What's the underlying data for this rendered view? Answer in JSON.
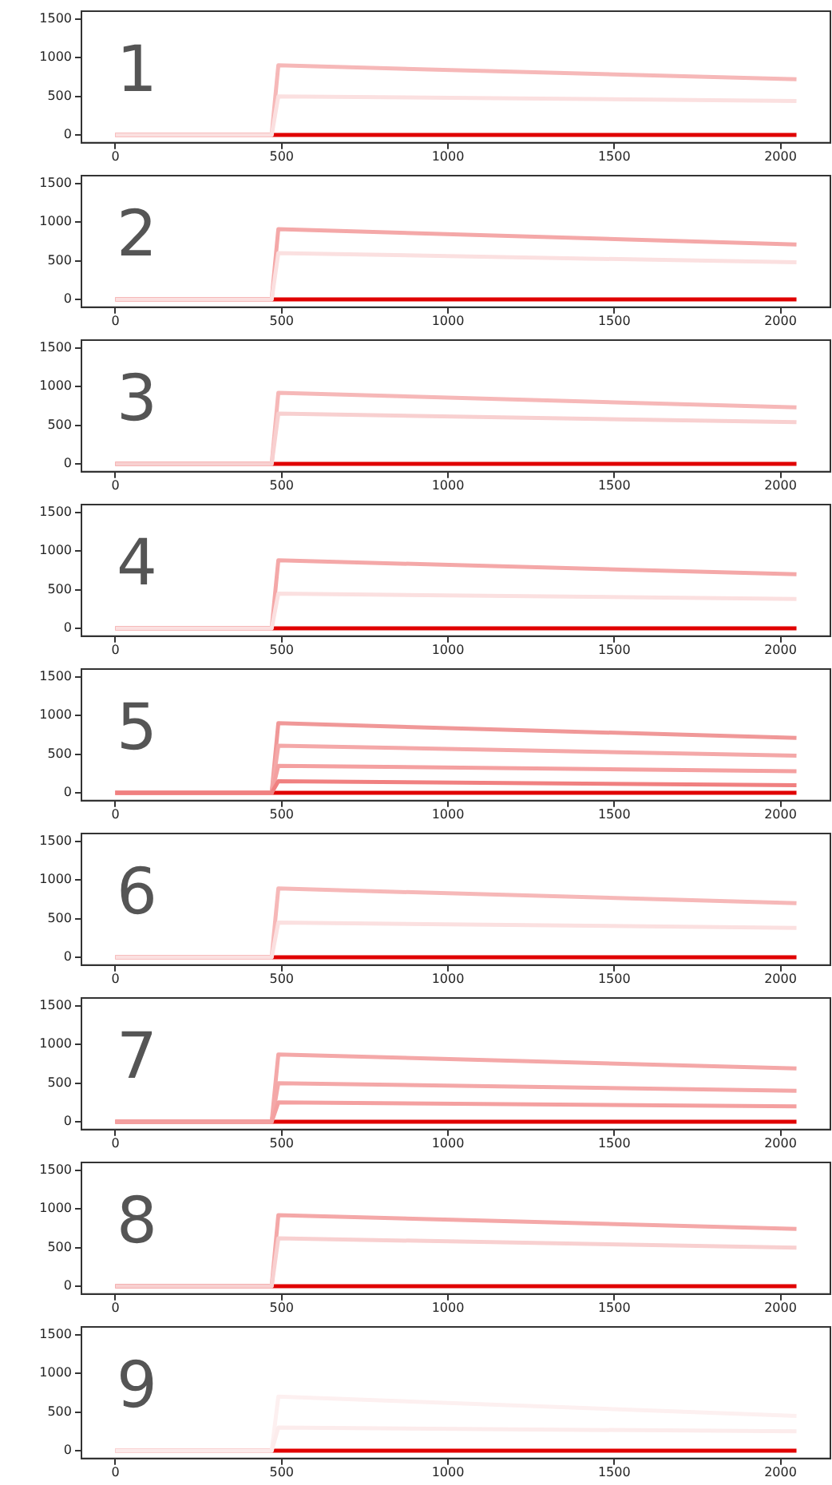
{
  "chart_data": [
    {
      "type": "line",
      "annotations": [
        "1"
      ],
      "xlim": [
        -102,
        2150
      ],
      "ylim": [
        -100,
        1600
      ],
      "xticks": [
        0,
        500,
        1000,
        1500,
        2000
      ],
      "yticks": [
        0,
        500,
        1000,
        1500
      ],
      "grid": false,
      "legend": false,
      "marker": "none",
      "line_style": "solid",
      "series": [
        {
          "color": "#fbe0e0",
          "x": [
            0,
            470,
            490,
            2048
          ],
          "values": [
            0,
            0,
            500,
            440
          ]
        },
        {
          "color": "#f6b8b8",
          "x": [
            0,
            470,
            490,
            2048
          ],
          "values": [
            0,
            0,
            900,
            720
          ]
        },
        {
          "color": "#e00000",
          "x": [
            0,
            470,
            490,
            2048
          ],
          "values": [
            0,
            0,
            0,
            0
          ]
        }
      ]
    },
    {
      "type": "line",
      "annotations": [
        "2"
      ],
      "xlim": [
        -102,
        2150
      ],
      "ylim": [
        -100,
        1600
      ],
      "xticks": [
        0,
        500,
        1000,
        1500,
        2000
      ],
      "yticks": [
        0,
        500,
        1000,
        1500
      ],
      "grid": false,
      "legend": false,
      "marker": "none",
      "line_style": "solid",
      "series": [
        {
          "color": "#fbe0e0",
          "x": [
            0,
            470,
            490,
            2048
          ],
          "values": [
            0,
            0,
            600,
            480
          ]
        },
        {
          "color": "#f4a8a8",
          "x": [
            0,
            470,
            490,
            2048
          ],
          "values": [
            0,
            0,
            910,
            710
          ]
        },
        {
          "color": "#e00000",
          "x": [
            0,
            470,
            490,
            2048
          ],
          "values": [
            0,
            0,
            0,
            0
          ]
        }
      ]
    },
    {
      "type": "line",
      "annotations": [
        "3"
      ],
      "xlim": [
        -102,
        2150
      ],
      "ylim": [
        -100,
        1600
      ],
      "xticks": [
        0,
        500,
        1000,
        1500,
        2000
      ],
      "yticks": [
        0,
        500,
        1000,
        1500
      ],
      "grid": false,
      "legend": false,
      "marker": "none",
      "line_style": "solid",
      "series": [
        {
          "color": "#f8d0d0",
          "x": [
            0,
            470,
            490,
            2048
          ],
          "values": [
            0,
            0,
            650,
            540
          ]
        },
        {
          "color": "#f6b8b8",
          "x": [
            0,
            470,
            490,
            2048
          ],
          "values": [
            0,
            0,
            920,
            730
          ]
        },
        {
          "color": "#e00000",
          "x": [
            0,
            470,
            490,
            2048
          ],
          "values": [
            0,
            0,
            0,
            0
          ]
        }
      ]
    },
    {
      "type": "line",
      "annotations": [
        "4"
      ],
      "xlim": [
        -102,
        2150
      ],
      "ylim": [
        -100,
        1600
      ],
      "xticks": [
        0,
        500,
        1000,
        1500,
        2000
      ],
      "yticks": [
        0,
        500,
        1000,
        1500
      ],
      "grid": false,
      "legend": false,
      "marker": "none",
      "line_style": "solid",
      "series": [
        {
          "color": "#fbe0e0",
          "x": [
            0,
            470,
            490,
            2048
          ],
          "values": [
            0,
            0,
            450,
            380
          ]
        },
        {
          "color": "#f4a8a8",
          "x": [
            0,
            470,
            490,
            2048
          ],
          "values": [
            0,
            0,
            880,
            700
          ]
        },
        {
          "color": "#e00000",
          "x": [
            0,
            470,
            490,
            2048
          ],
          "values": [
            0,
            0,
            0,
            0
          ]
        }
      ]
    },
    {
      "type": "line",
      "annotations": [
        "5"
      ],
      "xlim": [
        -102,
        2150
      ],
      "ylim": [
        -100,
        1600
      ],
      "xticks": [
        0,
        500,
        1000,
        1500,
        2000
      ],
      "yticks": [
        0,
        500,
        1000,
        1500
      ],
      "grid": false,
      "legend": false,
      "marker": "none",
      "line_style": "solid",
      "series": [
        {
          "color": "#f08080",
          "x": [
            0,
            470,
            490,
            2048
          ],
          "values": [
            0,
            0,
            150,
            100
          ]
        },
        {
          "color": "#f4a0a0",
          "x": [
            0,
            470,
            490,
            2048
          ],
          "values": [
            0,
            0,
            350,
            280
          ]
        },
        {
          "color": "#f4a8a8",
          "x": [
            0,
            470,
            490,
            2048
          ],
          "values": [
            0,
            0,
            610,
            480
          ]
        },
        {
          "color": "#f09898",
          "x": [
            0,
            470,
            490,
            2048
          ],
          "values": [
            0,
            0,
            900,
            710
          ]
        },
        {
          "color": "#e00000",
          "x": [
            0,
            470,
            490,
            2048
          ],
          "values": [
            0,
            0,
            0,
            0
          ]
        }
      ]
    },
    {
      "type": "line",
      "annotations": [
        "6"
      ],
      "xlim": [
        -102,
        2150
      ],
      "ylim": [
        -100,
        1600
      ],
      "xticks": [
        0,
        500,
        1000,
        1500,
        2000
      ],
      "yticks": [
        0,
        500,
        1000,
        1500
      ],
      "grid": false,
      "legend": false,
      "marker": "none",
      "line_style": "solid",
      "series": [
        {
          "color": "#fbe0e0",
          "x": [
            0,
            470,
            490,
            2048
          ],
          "values": [
            0,
            0,
            450,
            380
          ]
        },
        {
          "color": "#f6b8b8",
          "x": [
            0,
            470,
            490,
            2048
          ],
          "values": [
            0,
            0,
            890,
            700
          ]
        },
        {
          "color": "#e00000",
          "x": [
            0,
            470,
            490,
            2048
          ],
          "values": [
            0,
            0,
            0,
            0
          ]
        }
      ]
    },
    {
      "type": "line",
      "annotations": [
        "7"
      ],
      "xlim": [
        -102,
        2150
      ],
      "ylim": [
        -100,
        1600
      ],
      "xticks": [
        0,
        500,
        1000,
        1500,
        2000
      ],
      "yticks": [
        0,
        500,
        1000,
        1500
      ],
      "grid": false,
      "legend": false,
      "marker": "none",
      "line_style": "solid",
      "series": [
        {
          "color": "#f4a0a0",
          "x": [
            0,
            470,
            490,
            2048
          ],
          "values": [
            0,
            0,
            250,
            200
          ]
        },
        {
          "color": "#f4a8a8",
          "x": [
            0,
            470,
            490,
            2048
          ],
          "values": [
            0,
            0,
            500,
            400
          ]
        },
        {
          "color": "#f4a8a8",
          "x": [
            0,
            470,
            490,
            2048
          ],
          "values": [
            0,
            0,
            870,
            690
          ]
        },
        {
          "color": "#e00000",
          "x": [
            0,
            470,
            490,
            2048
          ],
          "values": [
            0,
            0,
            0,
            0
          ]
        }
      ]
    },
    {
      "type": "line",
      "annotations": [
        "8"
      ],
      "xlim": [
        -102,
        2150
      ],
      "ylim": [
        -100,
        1600
      ],
      "xticks": [
        0,
        500,
        1000,
        1500,
        2000
      ],
      "yticks": [
        0,
        500,
        1000,
        1500
      ],
      "grid": false,
      "legend": false,
      "marker": "none",
      "line_style": "solid",
      "series": [
        {
          "color": "#f8d0d0",
          "x": [
            0,
            470,
            490,
            2048
          ],
          "values": [
            0,
            0,
            620,
            500
          ]
        },
        {
          "color": "#f4a8a8",
          "x": [
            0,
            470,
            490,
            2048
          ],
          "values": [
            0,
            0,
            920,
            740
          ]
        },
        {
          "color": "#e00000",
          "x": [
            0,
            470,
            490,
            2048
          ],
          "values": [
            0,
            0,
            0,
            0
          ]
        }
      ]
    },
    {
      "type": "line",
      "annotations": [
        "9"
      ],
      "xlim": [
        -102,
        2150
      ],
      "ylim": [
        -100,
        1600
      ],
      "xticks": [
        0,
        500,
        1000,
        1500,
        2000
      ],
      "yticks": [
        0,
        500,
        1000,
        1500
      ],
      "grid": false,
      "legend": false,
      "marker": "none",
      "line_style": "solid",
      "series": [
        {
          "color": "#fcecec",
          "x": [
            0,
            470,
            490,
            2048
          ],
          "values": [
            0,
            0,
            300,
            250
          ]
        },
        {
          "color": "#fdf0f0",
          "x": [
            0,
            470,
            490,
            2048
          ],
          "values": [
            0,
            0,
            700,
            450
          ]
        },
        {
          "color": "#e00000",
          "x": [
            0,
            470,
            490,
            2048
          ],
          "values": [
            0,
            0,
            0,
            0
          ]
        }
      ]
    }
  ]
}
